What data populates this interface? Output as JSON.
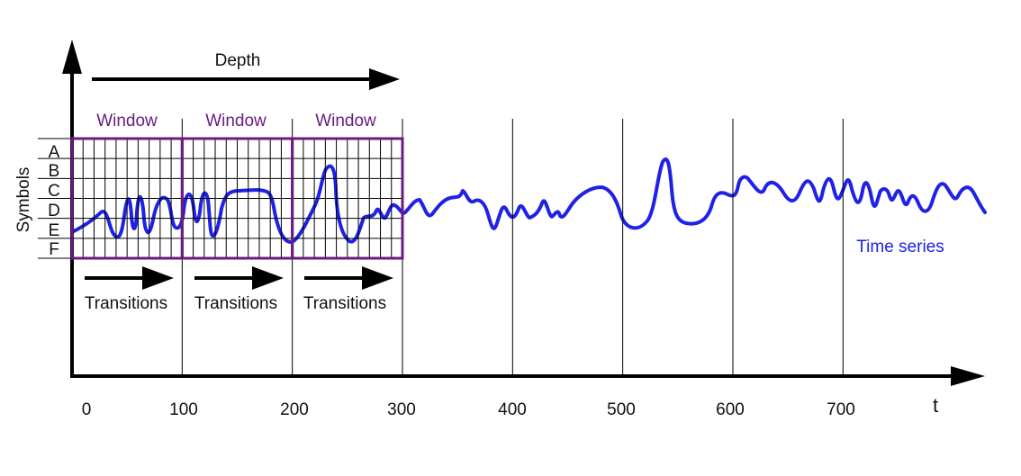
{
  "colors": {
    "axis": "#000000",
    "window": "#6a1b7f",
    "series": "#1f22e6",
    "grid": "#000000"
  },
  "labels": {
    "depth": "Depth",
    "window": "Window",
    "transitions": "Transitions",
    "symbols_axis": "Symbols",
    "time_axis": "t",
    "time_series": "Time series"
  },
  "symbols": [
    "A",
    "B",
    "C",
    "D",
    "E",
    "F"
  ],
  "x_ticks": [
    "0",
    "100",
    "200",
    "300",
    "400",
    "500",
    "600",
    "700"
  ],
  "windows": [
    {
      "label": "Window",
      "from": 0,
      "to": 100
    },
    {
      "label": "Window",
      "from": 100,
      "to": 200
    },
    {
      "label": "Window",
      "from": 200,
      "to": 300
    }
  ]
}
